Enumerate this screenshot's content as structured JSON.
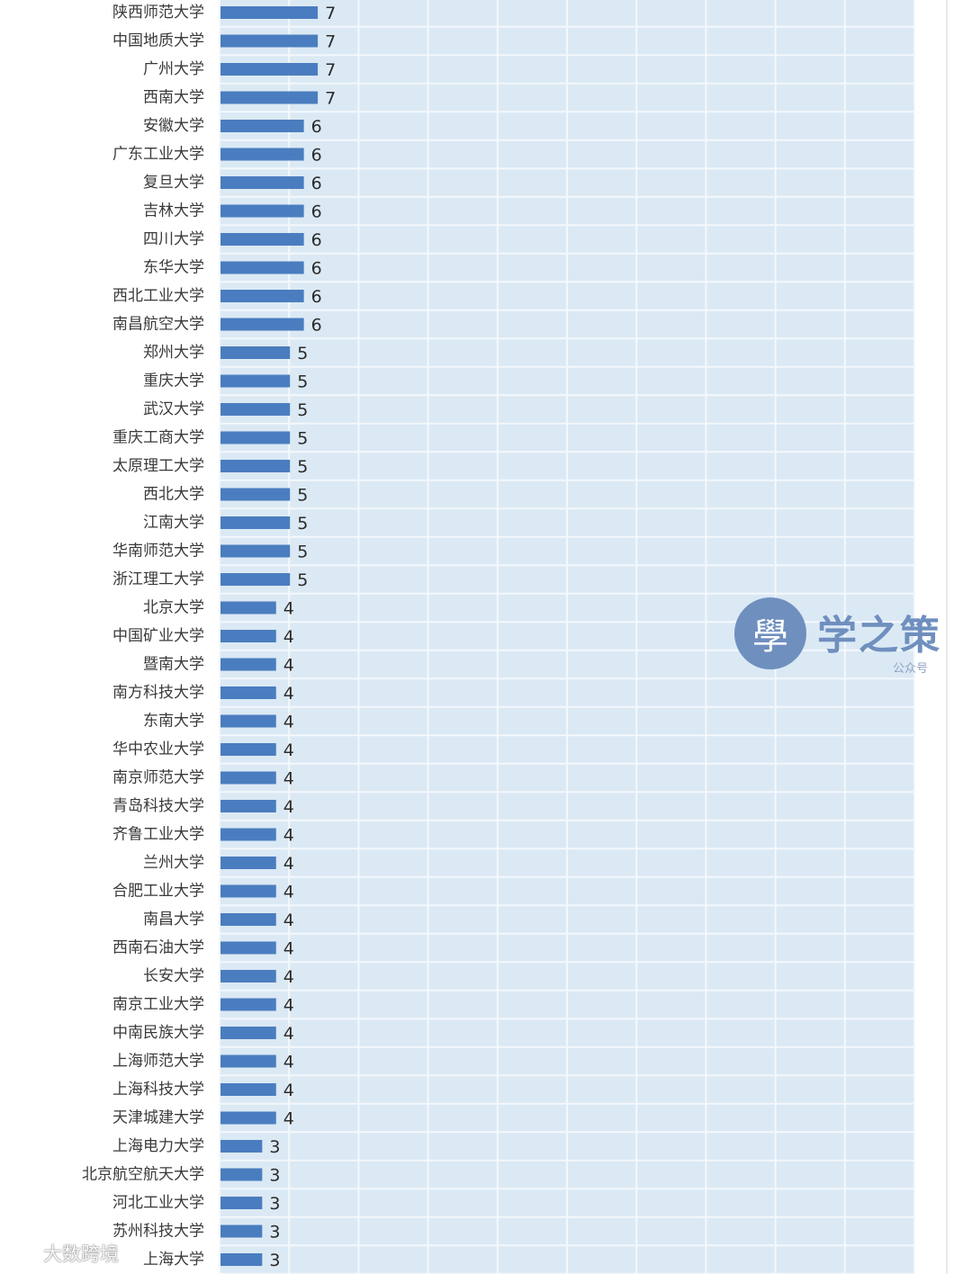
{
  "chart_data": {
    "type": "bar",
    "orientation": "horizontal",
    "title": "",
    "xlabel": "",
    "ylabel": "",
    "xlim": [
      0,
      50
    ],
    "grid": true,
    "bar_color": "#4a7dbf",
    "plot_background": "#dbe9f4",
    "categories": [
      "陕西师范大学",
      "中国地质大学",
      "广州大学",
      "西南大学",
      "安徽大学",
      "广东工业大学",
      "复旦大学",
      "吉林大学",
      "四川大学",
      "东华大学",
      "西北工业大学",
      "南昌航空大学",
      "郑州大学",
      "重庆大学",
      "武汉大学",
      "重庆工商大学",
      "太原理工大学",
      "西北大学",
      "江南大学",
      "华南师范大学",
      "浙江理工大学",
      "北京大学",
      "中国矿业大学",
      "暨南大学",
      "南方科技大学",
      "东南大学",
      "华中农业大学",
      "南京师范大学",
      "青岛科技大学",
      "齐鲁工业大学",
      "兰州大学",
      "合肥工业大学",
      "南昌大学",
      "西南石油大学",
      "长安大学",
      "南京工业大学",
      "中南民族大学",
      "上海师范大学",
      "上海科技大学",
      "天津城建大学",
      "上海电力大学",
      "北京航空航天大学",
      "河北工业大学",
      "苏州科技大学",
      "上海大学"
    ],
    "values": [
      7,
      7,
      7,
      7,
      6,
      6,
      6,
      6,
      6,
      6,
      6,
      6,
      5,
      5,
      5,
      5,
      5,
      5,
      5,
      5,
      5,
      4,
      4,
      4,
      4,
      4,
      4,
      4,
      4,
      4,
      4,
      4,
      4,
      4,
      4,
      4,
      4,
      4,
      4,
      4,
      3,
      3,
      3,
      3,
      3
    ]
  },
  "watermark": {
    "logo_char": "學",
    "title": "学之策",
    "subtitle": "公众号"
  },
  "footer": {
    "source_text": "大数跨境"
  }
}
